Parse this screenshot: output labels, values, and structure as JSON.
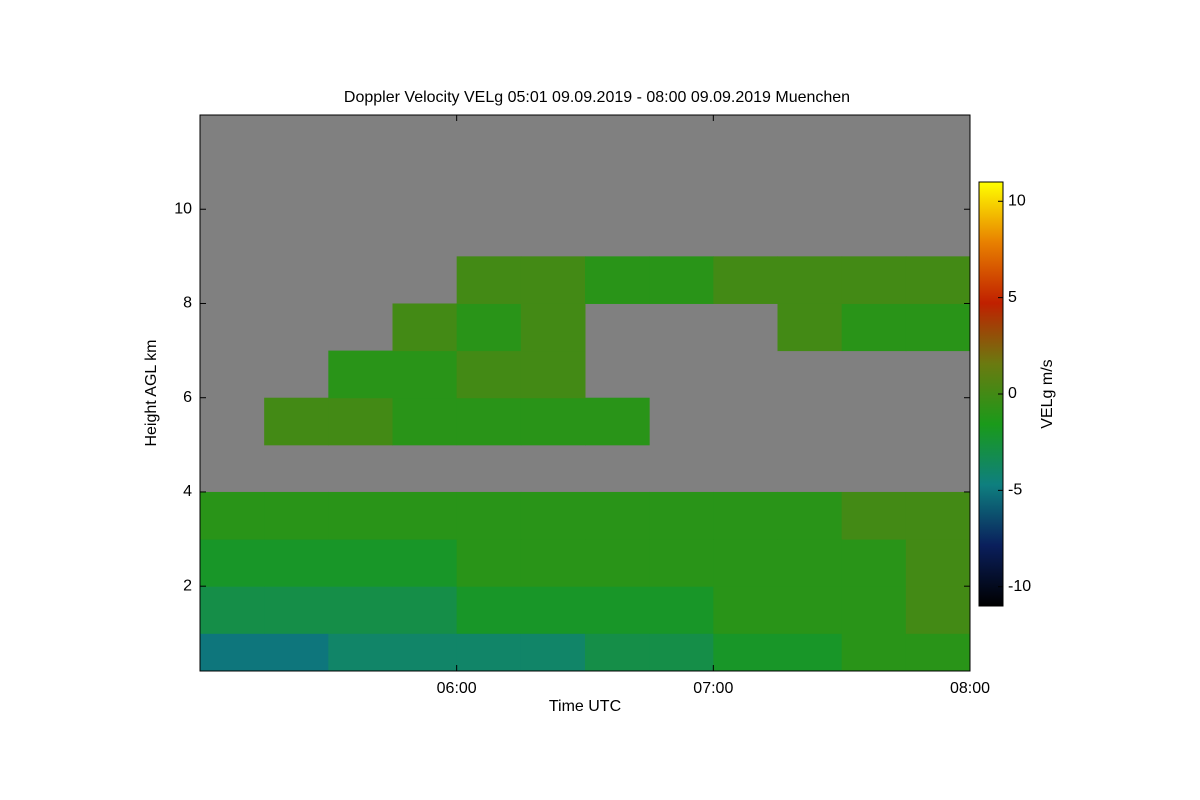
{
  "chart_data": {
    "type": "heatmap",
    "title": "Doppler Velocity VELg   05:01 09.09.2019 - 08:00 09.09.2019 Muenchen",
    "x_label": "Time UTC",
    "y_label": "Height AGL km",
    "colorbar_label": "VELg m/s",
    "xlim": [
      300,
      480
    ],
    "xticks": [
      {
        "value": 360,
        "label": "06:00"
      },
      {
        "value": 420,
        "label": "07:00"
      },
      {
        "value": 480,
        "label": "08:00"
      }
    ],
    "ylim": [
      0.2,
      12
    ],
    "yticks": [
      2,
      4,
      6,
      8,
      10
    ],
    "clim": [
      -11,
      11
    ],
    "cticks": [
      -10,
      -5,
      0,
      5,
      10
    ],
    "colormap": [
      "#000000",
      "#0a1f5c",
      "#0e7f7f",
      "#1a9a1a",
      "#6b7a10",
      "#c02000",
      "#e88000",
      "#ffff00"
    ],
    "background": "#808080",
    "xbins": [
      300,
      315,
      330,
      345,
      360,
      375,
      390,
      405,
      420,
      435,
      450,
      465,
      480
    ],
    "ybins": [
      0,
      1,
      2,
      3,
      4,
      5,
      6,
      7,
      8,
      9,
      10,
      11,
      12
    ],
    "z": [
      [
        -5,
        -5,
        -4,
        -4,
        -4,
        -4,
        -3,
        -3,
        -2,
        -2,
        -1,
        -1
      ],
      [
        -3,
        -3,
        -3,
        -3,
        -2,
        -2,
        -2,
        -2,
        -1,
        -1,
        -1,
        0
      ],
      [
        -2,
        -2,
        -2,
        -2,
        -1,
        -1,
        -1,
        -1,
        -1,
        -1,
        -1,
        0
      ],
      [
        -1,
        -1,
        -1,
        -1,
        -1,
        -1,
        -1,
        -1,
        -1,
        -1,
        0,
        0
      ],
      [
        null,
        null,
        null,
        null,
        null,
        null,
        null,
        null,
        null,
        null,
        null,
        null
      ],
      [
        null,
        0,
        0,
        -1,
        -1,
        -1,
        -1,
        null,
        null,
        null,
        null,
        null
      ],
      [
        null,
        null,
        -1,
        -1,
        0,
        0,
        null,
        null,
        null,
        null,
        null,
        null
      ],
      [
        null,
        null,
        null,
        0,
        -1,
        0,
        null,
        null,
        null,
        0,
        -1,
        -1
      ],
      [
        null,
        null,
        null,
        null,
        0,
        0,
        -1,
        -1,
        0,
        0,
        0,
        0
      ],
      [
        null,
        null,
        null,
        null,
        null,
        null,
        null,
        null,
        null,
        null,
        null,
        null
      ],
      [
        null,
        null,
        null,
        null,
        null,
        null,
        null,
        null,
        null,
        null,
        null,
        null
      ],
      [
        null,
        null,
        null,
        null,
        null,
        null,
        null,
        null,
        null,
        null,
        null,
        null
      ]
    ]
  }
}
